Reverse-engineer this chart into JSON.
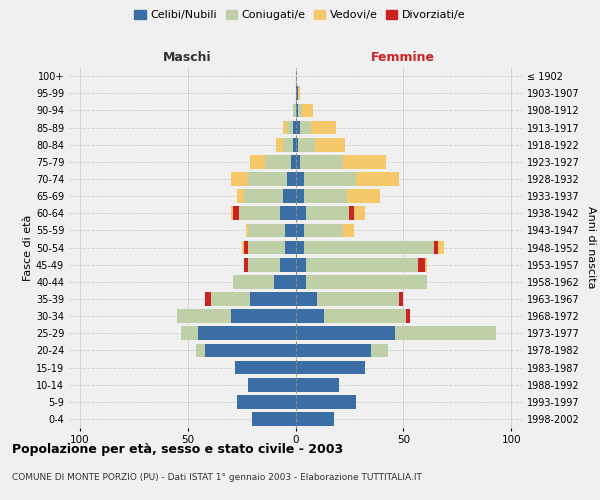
{
  "age_groups": [
    "0-4",
    "5-9",
    "10-14",
    "15-19",
    "20-24",
    "25-29",
    "30-34",
    "35-39",
    "40-44",
    "45-49",
    "50-54",
    "55-59",
    "60-64",
    "65-69",
    "70-74",
    "75-79",
    "80-84",
    "85-89",
    "90-94",
    "95-99",
    "100+"
  ],
  "birth_years": [
    "1998-2002",
    "1993-1997",
    "1988-1992",
    "1983-1987",
    "1978-1982",
    "1973-1977",
    "1968-1972",
    "1963-1967",
    "1958-1962",
    "1953-1957",
    "1948-1952",
    "1943-1947",
    "1938-1942",
    "1933-1937",
    "1928-1932",
    "1923-1927",
    "1918-1922",
    "1913-1917",
    "1908-1912",
    "1903-1907",
    "≤ 1902"
  ],
  "colors": {
    "celibi": "#3a6ea5",
    "coniugati": "#bfd0a8",
    "vedovi": "#f5c96a",
    "divorziati": "#cc2222"
  },
  "males": {
    "celibi": [
      20,
      27,
      22,
      28,
      42,
      45,
      30,
      21,
      10,
      7,
      5,
      5,
      7,
      6,
      4,
      2,
      1,
      1,
      0,
      0,
      0
    ],
    "coniugati": [
      0,
      0,
      0,
      0,
      4,
      8,
      25,
      18,
      19,
      15,
      17,
      17,
      19,
      18,
      18,
      12,
      5,
      3,
      1,
      0,
      0
    ],
    "vedovi": [
      0,
      0,
      0,
      0,
      0,
      0,
      0,
      0,
      0,
      0,
      1,
      1,
      1,
      3,
      8,
      7,
      3,
      2,
      0,
      0,
      0
    ],
    "divorziati": [
      0,
      0,
      0,
      0,
      0,
      0,
      0,
      3,
      0,
      2,
      2,
      0,
      3,
      0,
      0,
      0,
      0,
      0,
      0,
      0,
      0
    ]
  },
  "females": {
    "celibi": [
      18,
      28,
      20,
      32,
      35,
      46,
      13,
      10,
      5,
      5,
      4,
      4,
      5,
      4,
      4,
      2,
      1,
      2,
      1,
      1,
      0
    ],
    "coniugati": [
      0,
      0,
      0,
      0,
      8,
      47,
      38,
      38,
      56,
      52,
      60,
      18,
      20,
      20,
      24,
      20,
      8,
      5,
      2,
      0,
      0
    ],
    "vedovi": [
      0,
      0,
      0,
      0,
      0,
      0,
      0,
      0,
      0,
      1,
      3,
      5,
      5,
      15,
      20,
      20,
      14,
      12,
      5,
      1,
      0
    ],
    "divorziati": [
      0,
      0,
      0,
      0,
      0,
      0,
      2,
      2,
      0,
      3,
      2,
      0,
      2,
      0,
      0,
      0,
      0,
      0,
      0,
      0,
      0
    ]
  },
  "xlim": 105,
  "title": "Popolazione per età, sesso e stato civile - 2003",
  "subtitle": "COMUNE DI MONTE PORZIO (PU) - Dati ISTAT 1° gennaio 2003 - Elaborazione TUTTITALIA.IT",
  "xlabel_left": "Maschi",
  "xlabel_right": "Femmine",
  "ylabel_left": "Fasce di età",
  "ylabel_right": "Anni di nascita",
  "legend_labels": [
    "Celibi/Nubili",
    "Coniugati/e",
    "Vedovi/e",
    "Divorziati/e"
  ],
  "bg_color": "#f0f0f0",
  "grid_color": "#d0d0d0"
}
